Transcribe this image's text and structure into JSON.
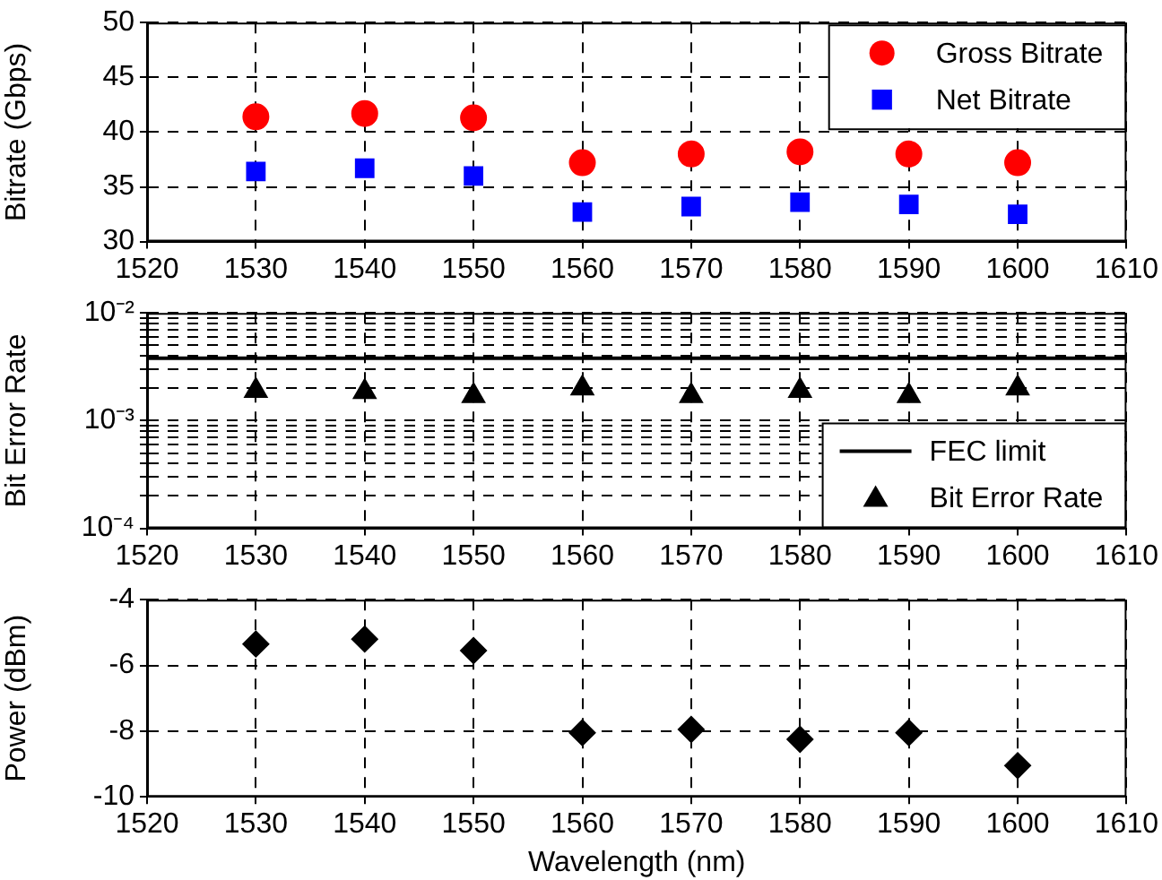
{
  "chart_data": [
    {
      "type": "scatter",
      "ylabel": "Bitrate (Gbps)",
      "x": [
        1530,
        1540,
        1550,
        1560,
        1570,
        1580,
        1590,
        1600
      ],
      "series": [
        {
          "name": "Gross Bitrate",
          "color": "#ff0000",
          "marker": "circle",
          "values": [
            41.4,
            41.7,
            41.3,
            37.2,
            38.0,
            38.2,
            38.0,
            37.2
          ]
        },
        {
          "name": "Net Bitrate",
          "color": "#0000ff",
          "marker": "square",
          "values": [
            36.4,
            36.7,
            36.0,
            32.7,
            33.2,
            33.6,
            33.4,
            32.5
          ]
        }
      ],
      "xlim": [
        1520,
        1610
      ],
      "xticks": [
        1520,
        1530,
        1540,
        1550,
        1560,
        1570,
        1580,
        1590,
        1600,
        1610
      ],
      "ylim": [
        30,
        50
      ],
      "yticks": [
        30,
        35,
        40,
        45,
        50
      ],
      "grid": true,
      "legend": "top right"
    },
    {
      "type": "scatter",
      "ylabel": "Bit Error Rate",
      "x": [
        1530,
        1540,
        1550,
        1560,
        1570,
        1580,
        1590,
        1600
      ],
      "log": "y",
      "series": [
        {
          "name": "Bit Error Rate",
          "color": "#000000",
          "marker": "triangle",
          "values": [
            0.0019,
            0.00185,
            0.0017,
            0.002,
            0.0017,
            0.0019,
            0.0017,
            0.002
          ]
        }
      ],
      "ref_lines": [
        {
          "axis": "y",
          "value": 0.0038,
          "label": "FEC limit",
          "color": "#000000",
          "line_style": "solid"
        }
      ],
      "xlim": [
        1520,
        1610
      ],
      "xticks": [
        1520,
        1530,
        1540,
        1550,
        1560,
        1570,
        1580,
        1590,
        1600,
        1610
      ],
      "ylim": [
        0.0001,
        0.01
      ],
      "yticks": [
        {
          "value": 0.0001,
          "label": "10⁻⁴"
        },
        {
          "value": 0.0002,
          "label": null
        },
        {
          "value": 0.0003,
          "label": null
        },
        {
          "value": 0.0004,
          "label": null
        },
        {
          "value": 0.0005,
          "label": null
        },
        {
          "value": 0.0006,
          "label": null
        },
        {
          "value": 0.0007,
          "label": null
        },
        {
          "value": 0.0008,
          "label": null
        },
        {
          "value": 0.0009,
          "label": null
        },
        {
          "value": 0.001,
          "label": "10⁻³"
        },
        {
          "value": 0.002,
          "label": null
        },
        {
          "value": 0.003,
          "label": null
        },
        {
          "value": 0.004,
          "label": null
        },
        {
          "value": 0.005,
          "label": null
        },
        {
          "value": 0.006,
          "label": null
        },
        {
          "value": 0.007,
          "label": null
        },
        {
          "value": 0.008,
          "label": null
        },
        {
          "value": 0.009,
          "label": null
        },
        {
          "value": 0.01,
          "label": "10⁻²"
        }
      ],
      "grid": true,
      "legend": "bottom right"
    },
    {
      "type": "scatter",
      "ylabel": "Power (dBm)",
      "xlabel": "Wavelength (nm)",
      "x": [
        1530,
        1540,
        1550,
        1560,
        1570,
        1580,
        1590,
        1600
      ],
      "series": [
        {
          "color": "#000000",
          "marker": "diamond",
          "values": [
            -5.35,
            -5.2,
            -5.55,
            -8.05,
            -7.95,
            -8.25,
            -8.05,
            -9.05
          ]
        }
      ],
      "xlim": [
        1520,
        1610
      ],
      "xticks": [
        1520,
        1530,
        1540,
        1550,
        1560,
        1570,
        1580,
        1590,
        1600,
        1610
      ],
      "ylim": [
        -10,
        -4
      ],
      "yticks": [
        -10,
        -8,
        -6,
        -4
      ],
      "grid": true
    }
  ]
}
